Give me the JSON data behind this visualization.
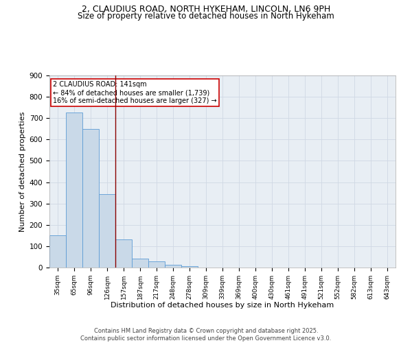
{
  "title_line1": "2, CLAUDIUS ROAD, NORTH HYKEHAM, LINCOLN, LN6 9PH",
  "title_line2": "Size of property relative to detached houses in North Hykeham",
  "xlabel": "Distribution of detached houses by size in North Hykeham",
  "ylabel": "Number of detached properties",
  "bar_labels": [
    "35sqm",
    "65sqm",
    "96sqm",
    "126sqm",
    "157sqm",
    "187sqm",
    "217sqm",
    "248sqm",
    "278sqm",
    "309sqm",
    "339sqm",
    "369sqm",
    "400sqm",
    "430sqm",
    "461sqm",
    "491sqm",
    "521sqm",
    "552sqm",
    "582sqm",
    "613sqm",
    "643sqm"
  ],
  "bar_values": [
    150,
    725,
    648,
    345,
    133,
    42,
    30,
    12,
    6,
    0,
    0,
    0,
    0,
    0,
    0,
    0,
    0,
    0,
    0,
    0,
    0
  ],
  "bar_color": "#c9d9e8",
  "bar_edge_color": "#5b9bd5",
  "vline_color": "#8b0000",
  "annotation_text": "2 CLAUDIUS ROAD: 141sqm\n← 84% of detached houses are smaller (1,739)\n16% of semi-detached houses are larger (327) →",
  "annotation_box_color": "white",
  "annotation_box_edge": "#cc0000",
  "footer_text": "Contains HM Land Registry data © Crown copyright and database right 2025.\nContains public sector information licensed under the Open Government Licence v3.0.",
  "ylim": [
    0,
    900
  ],
  "yticks": [
    0,
    100,
    200,
    300,
    400,
    500,
    600,
    700,
    800,
    900
  ],
  "grid_color": "#d0d8e4",
  "bg_color": "#e8eef4",
  "title_fontsize": 9,
  "subtitle_fontsize": 8.5
}
